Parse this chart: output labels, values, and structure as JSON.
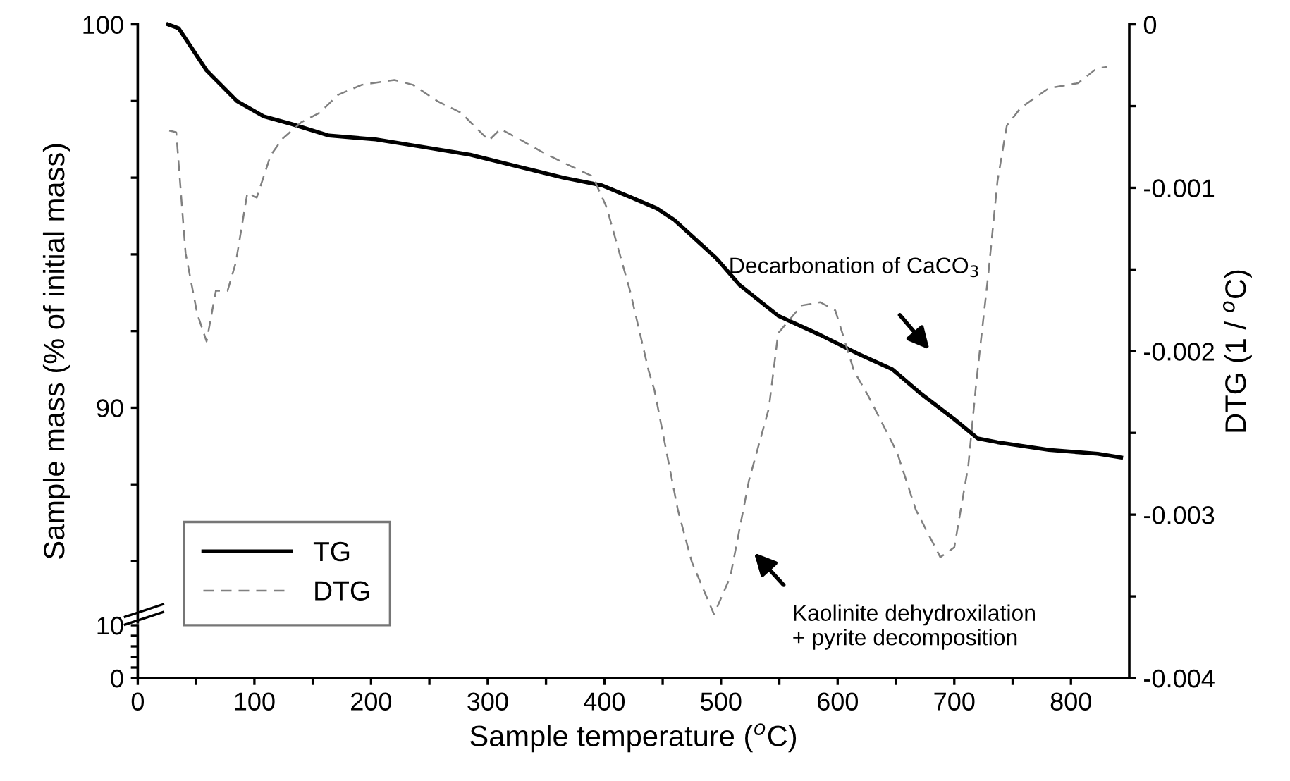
{
  "chart_data": [
    {
      "type": "line",
      "ylabel": "Sample mass (% of initial mass)",
      "y2label": "DTG (1 / $^{o}$C)",
      "series": [
        {
          "name": "TG",
          "color": "#000000",
          "line_style": "solid",
          "x": [
            26,
            35,
            59,
            85,
            108,
            132,
            164,
            204,
            245,
            285,
            325,
            365,
            398,
            422,
            445,
            460,
            496,
            516,
            549,
            585,
            618,
            647,
            670,
            700,
            720,
            737,
            781,
            823,
            843
          ],
          "values": [
            100,
            99.9,
            98.8,
            98.0,
            97.6,
            97.4,
            97.1,
            97.0,
            96.8,
            96.6,
            96.3,
            96.0,
            95.8,
            95.5,
            95.2,
            94.9,
            93.9,
            93.2,
            92.4,
            91.9,
            91.4,
            91.0,
            90.4,
            89.7,
            89.2,
            89.1,
            88.9,
            88.8,
            88.7
          ]
        },
        {
          "name": "DTG",
          "color": "#808080",
          "line_style": "dashed",
          "axis": "y2",
          "x": [
            27,
            33,
            41,
            51,
            59,
            67,
            77,
            84,
            94,
            102,
            114,
            124,
            140,
            156,
            172,
            192,
            220,
            236,
            257,
            277,
            301,
            311,
            329,
            349,
            369,
            390,
            402,
            422,
            438,
            443,
            463,
            475,
            494,
            508,
            524,
            541,
            549,
            569,
            585,
            598,
            614,
            626,
            651,
            667,
            688,
            700,
            712,
            719,
            729,
            737,
            745,
            757,
            781,
            806,
            822,
            831
          ],
          "values": [
            -0.00065,
            -0.00066,
            -0.0014,
            -0.00177,
            -0.00194,
            -0.00163,
            -0.00163,
            -0.00146,
            -0.00103,
            -0.00106,
            -0.0008,
            -0.0007,
            -0.0006,
            -0.00054,
            -0.00043,
            -0.00037,
            -0.00034,
            -0.00037,
            -0.00047,
            -0.00054,
            -0.00071,
            -0.00064,
            -0.00071,
            -0.00079,
            -0.00086,
            -0.00093,
            -0.00112,
            -0.00163,
            -0.00212,
            -0.00224,
            -0.00297,
            -0.00329,
            -0.00361,
            -0.00338,
            -0.00279,
            -0.00235,
            -0.00189,
            -0.00172,
            -0.0017,
            -0.00175,
            -0.00212,
            -0.00227,
            -0.00262,
            -0.00297,
            -0.00326,
            -0.0032,
            -0.0027,
            -0.00218,
            -0.00154,
            -0.00096,
            -0.00062,
            -0.00051,
            -0.00039,
            -0.00036,
            -0.00027,
            -0.00026
          ]
        }
      ],
      "xlim": [
        0,
        850
      ],
      "ylim": [
        84.4,
        100
      ],
      "yticks": [
        {
          "value": 86,
          "label": null
        },
        {
          "value": 88,
          "label": null
        },
        90,
        {
          "value": 92,
          "label": null
        },
        {
          "value": 94,
          "label": null
        },
        {
          "value": 96,
          "label": null
        },
        {
          "value": 98,
          "label": null
        },
        100
      ],
      "y2lim": [
        -0.004,
        0
      ],
      "y2ticks": [
        -0.004,
        {
          "value": -0.0035,
          "label": null
        },
        -0.003,
        {
          "value": -0.0025,
          "label": null
        },
        -0.002,
        {
          "value": -0.0015,
          "label": null
        },
        -0.001,
        {
          "value": -0.0005,
          "label": null
        },
        0
      ],
      "annotations": [
        "Decarbonation of CaCO$_{3}$",
        "Kaolinite dehydroxilation\n+ pyrite decomposition"
      ],
      "legend": "bottom left",
      "tick_labels": "y"
    },
    {
      "type": "line",
      "xlabel": "Sample temperature ($^{o}$C)",
      "xlim": [
        0,
        850
      ],
      "ylim": [
        0,
        10
      ],
      "xticks": [
        0,
        {
          "value": 50,
          "label": null
        },
        100,
        {
          "value": 150,
          "label": null
        },
        200,
        {
          "value": 250,
          "label": null
        },
        300,
        {
          "value": 350,
          "label": null
        },
        400,
        {
          "value": 450,
          "label": null
        },
        500,
        {
          "value": 550,
          "label": null
        },
        600,
        {
          "value": 650,
          "label": null
        },
        700,
        {
          "value": 750,
          "label": null
        },
        800
      ],
      "yticks": [
        0,
        {
          "value": 2,
          "label": null
        },
        {
          "value": 4,
          "label": null
        },
        {
          "value": 6,
          "label": null
        },
        {
          "value": 8,
          "label": null
        },
        10
      ]
    }
  ]
}
